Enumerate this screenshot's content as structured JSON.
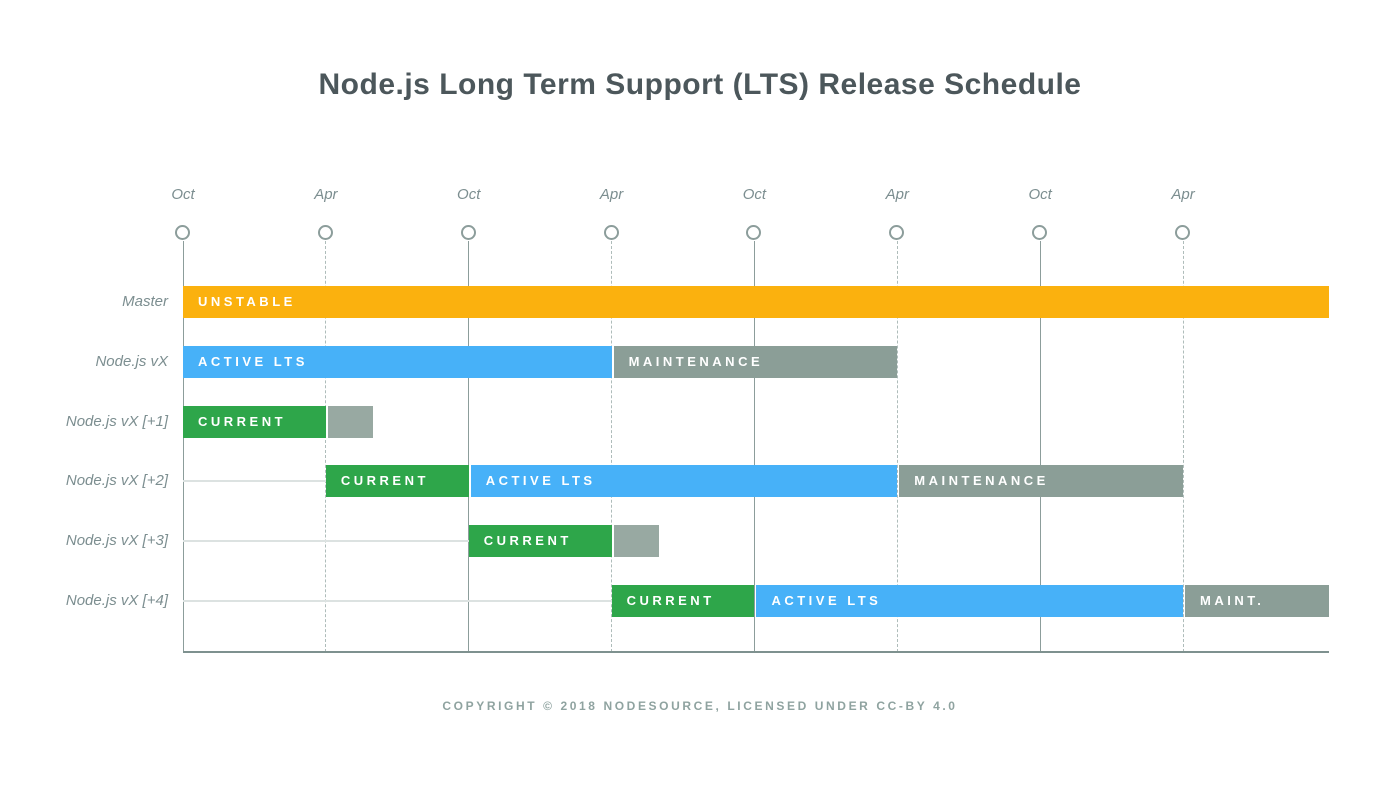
{
  "chart_data": {
    "type": "gantt",
    "title": "Node.js Long Term Support (LTS) Release Schedule",
    "footer": "COPYRIGHT © 2018 NODESOURCE, LICENSED UNDER CC-BY 4.0",
    "x_axis": {
      "unit": "half-year per tick, Oct/Apr alternating",
      "range": [
        0,
        8.02
      ],
      "grid": "vertical lines: solid under Oct ticks, dashed under Apr ticks",
      "ticks": [
        {
          "label": "Oct",
          "t": 0,
          "line": "solid"
        },
        {
          "label": "Apr",
          "t": 1,
          "line": "dashed"
        },
        {
          "label": "Oct",
          "t": 2,
          "line": "solid"
        },
        {
          "label": "Apr",
          "t": 3,
          "line": "dashed"
        },
        {
          "label": "Oct",
          "t": 4,
          "line": "solid"
        },
        {
          "label": "Apr",
          "t": 5,
          "line": "dashed"
        },
        {
          "label": "Oct",
          "t": 6,
          "line": "solid"
        },
        {
          "label": "Apr",
          "t": 7,
          "line": "dashed"
        }
      ]
    },
    "rows": [
      {
        "label": "Master",
        "connector": null,
        "bars": [
          {
            "label": "UNSTABLE",
            "status": "unstable",
            "start": 0,
            "end": 8.02
          }
        ]
      },
      {
        "label": "Node.js vX",
        "connector": null,
        "bars": [
          {
            "label": "ACTIVE LTS",
            "status": "active",
            "start": 0,
            "end": 3
          },
          {
            "label": "MAINTENANCE",
            "status": "maintenance",
            "start": 3,
            "end": 5
          }
        ]
      },
      {
        "label": "Node.js vX [+1]",
        "connector": null,
        "bars": [
          {
            "label": "CURRENT",
            "status": "current",
            "start": 0,
            "end": 1
          },
          {
            "label": "",
            "status": "stub",
            "start": 1,
            "end": 1.33
          }
        ]
      },
      {
        "label": "Node.js vX [+2]",
        "connector": [
          0,
          1
        ],
        "bars": [
          {
            "label": "CURRENT",
            "status": "current",
            "start": 1,
            "end": 2
          },
          {
            "label": "ACTIVE LTS",
            "status": "active",
            "start": 2,
            "end": 5
          },
          {
            "label": "MAINTENANCE",
            "status": "maintenance",
            "start": 5,
            "end": 7
          }
        ]
      },
      {
        "label": "Node.js vX [+3]",
        "connector": [
          0,
          2
        ],
        "bars": [
          {
            "label": "CURRENT",
            "status": "current",
            "start": 2,
            "end": 3
          },
          {
            "label": "",
            "status": "stub",
            "start": 3,
            "end": 3.33
          }
        ]
      },
      {
        "label": "Node.js vX [+4]",
        "connector": [
          0,
          3
        ],
        "bars": [
          {
            "label": "CURRENT",
            "status": "current",
            "start": 3,
            "end": 4
          },
          {
            "label": "ACTIVE LTS",
            "status": "active",
            "start": 4,
            "end": 7
          },
          {
            "label": "MAINT.",
            "status": "maintenance",
            "start": 7,
            "end": 8.02
          }
        ]
      }
    ],
    "colors": {
      "unstable": "#FBB10E",
      "active": "#47B1F8",
      "current": "#2EA64A",
      "maintenance": "#8B9E97",
      "stub": "#98A9A2"
    },
    "legend": "none"
  }
}
